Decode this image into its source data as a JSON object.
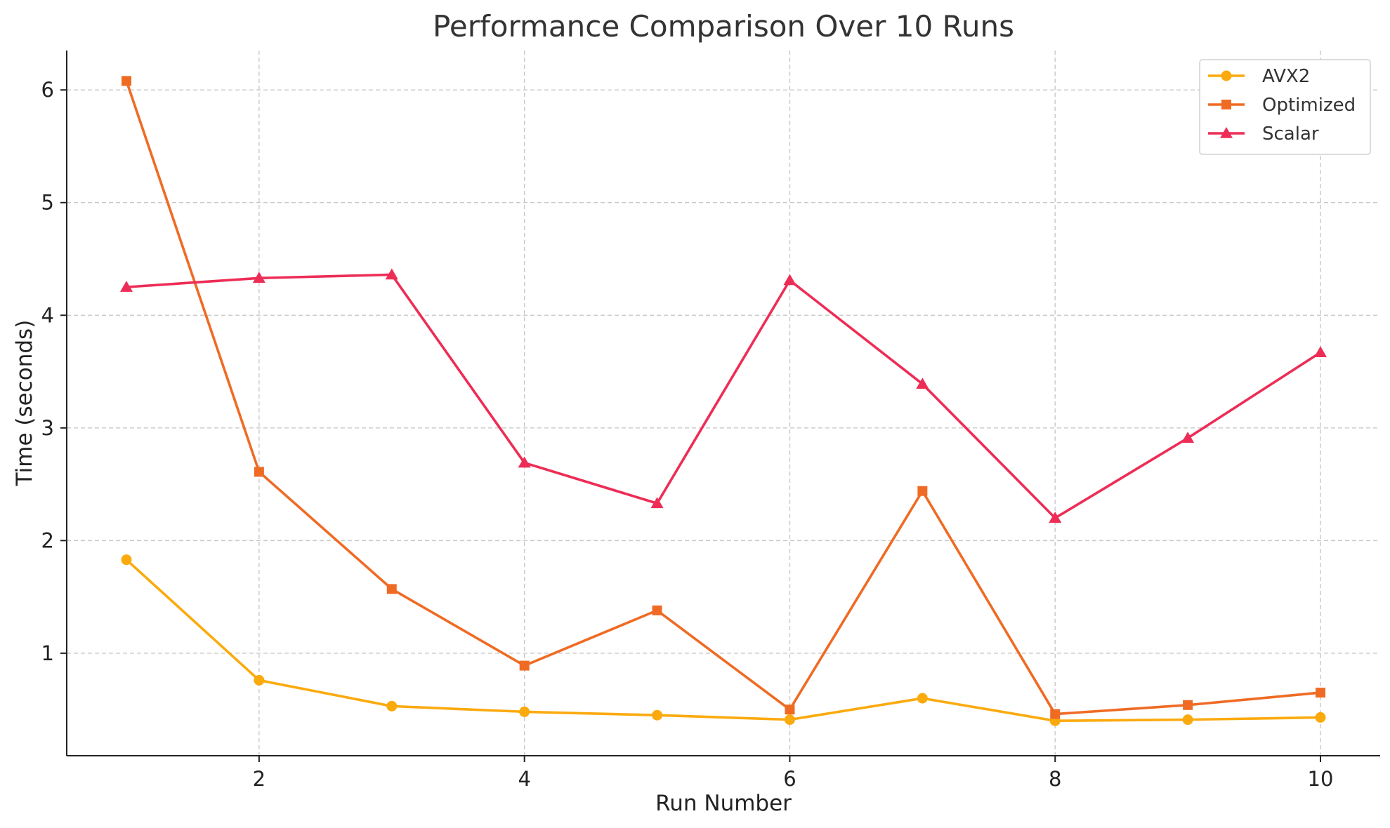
{
  "chart_data": {
    "type": "line",
    "title": "Performance Comparison Over 10 Runs",
    "xlabel": "Run Number",
    "ylabel": "Time (seconds)",
    "x": [
      1,
      2,
      3,
      4,
      5,
      6,
      7,
      8,
      9,
      10
    ],
    "xlim": [
      0.55,
      10.45
    ],
    "ylim": [
      0.09,
      6.35
    ],
    "xticks": [
      2,
      4,
      6,
      8,
      10
    ],
    "yticks": [
      1,
      2,
      3,
      4,
      5,
      6
    ],
    "grid": true,
    "legend_position": "top-right",
    "series": [
      {
        "name": "AVX2",
        "color": "#FBAA0E",
        "marker": "circle",
        "values": [
          1.83,
          0.76,
          0.53,
          0.48,
          0.45,
          0.41,
          0.6,
          0.4,
          0.41,
          0.43
        ]
      },
      {
        "name": "Optimized",
        "color": "#EF6B24",
        "marker": "square",
        "values": [
          6.08,
          2.61,
          1.57,
          0.89,
          1.38,
          0.5,
          2.44,
          0.46,
          0.54,
          0.65
        ]
      },
      {
        "name": "Scalar",
        "color": "#ED2D56",
        "marker": "triangle",
        "values": [
          4.25,
          4.33,
          4.36,
          2.69,
          2.33,
          4.31,
          3.39,
          2.2,
          2.91,
          3.67
        ]
      }
    ]
  }
}
